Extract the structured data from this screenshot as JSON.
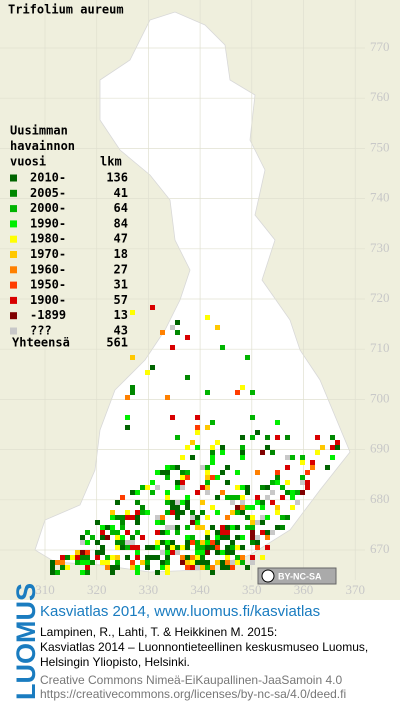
{
  "title": "Trifolium aureum",
  "legend": {
    "heading": [
      "Uusimman",
      "havainnon",
      "vuosi"
    ],
    "count_heading": "lkm",
    "rows": [
      {
        "label": "2010-",
        "count": "136",
        "color": "#006400"
      },
      {
        "label": "2005-",
        "count": "41",
        "color": "#008800"
      },
      {
        "label": "2000-",
        "count": "64",
        "color": "#00b400"
      },
      {
        "label": "1990-",
        "count": "84",
        "color": "#00ee00"
      },
      {
        "label": "1980-",
        "count": "47",
        "color": "#ffff00"
      },
      {
        "label": "1970-",
        "count": "18",
        "color": "#ffc800"
      },
      {
        "label": "1960-",
        "count": "27",
        "color": "#ff8000"
      },
      {
        "label": "1950-",
        "count": "31",
        "color": "#ff3c00"
      },
      {
        "label": "1900-",
        "count": "57",
        "color": "#d80000"
      },
      {
        "label": "-1899",
        "count": "13",
        "color": "#800000"
      },
      {
        "label": "???",
        "count": "43",
        "color": "#c8c8c8"
      }
    ],
    "total_label": "Yhteensä",
    "total": "561"
  },
  "grid": {
    "y_labels": [
      "770",
      "760",
      "750",
      "740",
      "730",
      "720",
      "710",
      "700",
      "690",
      "680",
      "670"
    ],
    "x_labels": [
      "310",
      "320",
      "330",
      "340",
      "350",
      "360",
      "370"
    ]
  },
  "license_badge": "BY-NC-SA",
  "brand": "LUOMUS",
  "footer": {
    "link": "Kasviatlas 2014, www.luomus.fi/kasviatlas",
    "citation": [
      "Lampinen, R., Lahti, T. & Heikkinen M. 2015:",
      "Kasviatlas 2014 – Luonnontieteellinen keskusmuseo Luomus,",
      "Helsingin Yliopisto, Helsinki."
    ],
    "license": [
      "Creative Commons Nimeä-EiKaupallinen-JaaSamoin 4.0",
      "https://creativecommons.org/licenses/by-nc-sa/4.0/deed.fi"
    ]
  }
}
